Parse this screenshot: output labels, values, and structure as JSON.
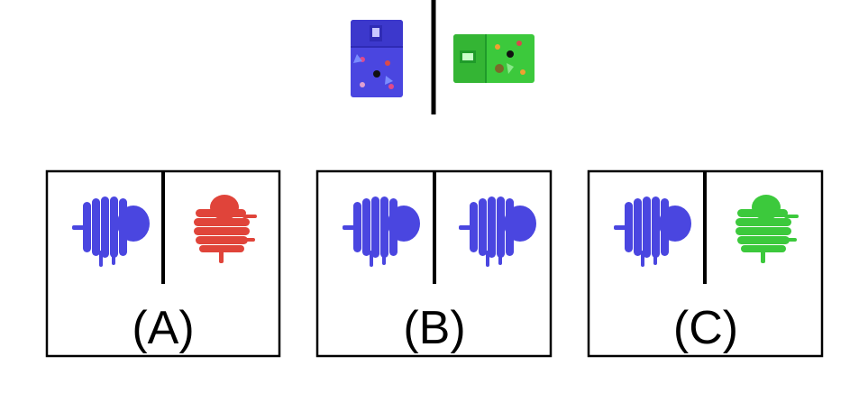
{
  "colors": {
    "frame": "#000000",
    "blue": "#4a46e0",
    "blue_dark": "#2f2bb5",
    "green": "#3cc93c",
    "green_dark": "#1f9b2a",
    "red": "#e0443a",
    "red_dark": "#b22a24"
  },
  "example": {
    "left_icon": "blue-bag-icon",
    "right_icon": "green-bag-icon"
  },
  "options": [
    {
      "label": "(A)",
      "left_icon": "blue-coil-icon",
      "right_icon": "red-coil-icon"
    },
    {
      "label": "(B)",
      "left_icon": "blue-coil-icon",
      "right_icon": "blue-coil-icon"
    },
    {
      "label": "(C)",
      "left_icon": "blue-coil-icon",
      "right_icon": "green-coil-icon"
    }
  ]
}
